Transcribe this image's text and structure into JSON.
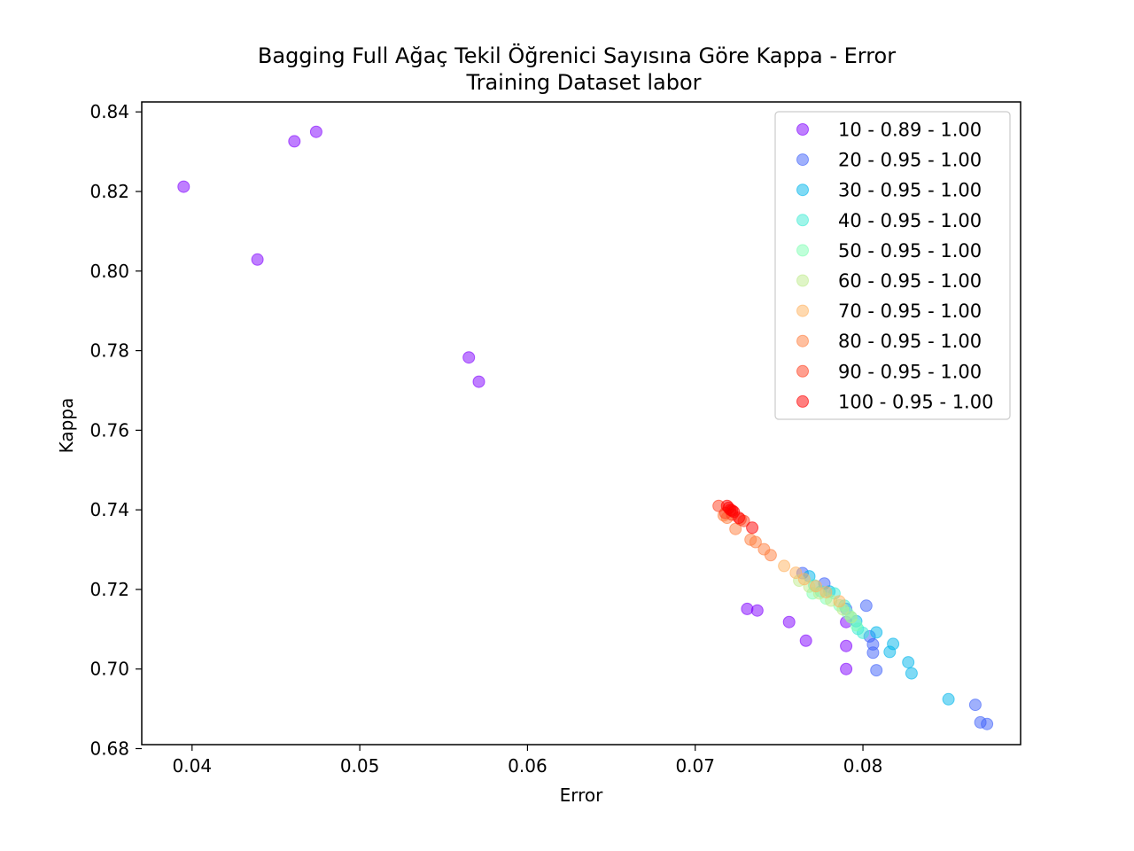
{
  "chart_data": {
    "type": "scatter",
    "title": "Bagging Full Ağaç Tekil Öğrenici Sayısına Göre Kappa - Error",
    "subtitle": "Training Dataset  labor",
    "xlabel": "Error",
    "ylabel": "Kappa",
    "xlim": [
      0.037,
      0.0894
    ],
    "ylim": [
      0.681,
      0.8425
    ],
    "xticks": [
      "0.04",
      "0.05",
      "0.06",
      "0.07",
      "0.08"
    ],
    "yticks": [
      "0.68",
      "0.70",
      "0.72",
      "0.74",
      "0.76",
      "0.78",
      "0.80",
      "0.82",
      "0.84"
    ],
    "grid": false,
    "legend_position": "top-right",
    "series": [
      {
        "name": "10 - 0.89 - 1.00",
        "color": "#8000ff",
        "points": [
          [
            0.0395,
            0.8212
          ],
          [
            0.0461,
            0.8326
          ],
          [
            0.0474,
            0.835
          ],
          [
            0.0439,
            0.8029
          ],
          [
            0.0565,
            0.7783
          ],
          [
            0.0571,
            0.7722
          ],
          [
            0.0731,
            0.7151
          ],
          [
            0.0737,
            0.7147
          ],
          [
            0.0756,
            0.7118
          ],
          [
            0.0766,
            0.7071
          ],
          [
            0.079,
            0.7058
          ],
          [
            0.079,
            0.7
          ],
          [
            0.079,
            0.7118
          ]
        ]
      },
      {
        "name": "20 - 0.95 - 1.00",
        "color": "#4062fa",
        "points": [
          [
            0.0764,
            0.7241
          ],
          [
            0.0777,
            0.7215
          ],
          [
            0.079,
            0.7151
          ],
          [
            0.0802,
            0.7159
          ],
          [
            0.0804,
            0.7082
          ],
          [
            0.0806,
            0.7062
          ],
          [
            0.0806,
            0.7041
          ],
          [
            0.0808,
            0.6997
          ],
          [
            0.0867,
            0.691
          ],
          [
            0.087,
            0.6866
          ],
          [
            0.0874,
            0.6862
          ]
        ]
      },
      {
        "name": "30 - 0.95 - 1.00",
        "color": "#00b5eb",
        "points": [
          [
            0.0768,
            0.7233
          ],
          [
            0.078,
            0.7195
          ],
          [
            0.0796,
            0.712
          ],
          [
            0.0808,
            0.7092
          ],
          [
            0.0816,
            0.7043
          ],
          [
            0.0818,
            0.7063
          ],
          [
            0.0827,
            0.7017
          ],
          [
            0.0829,
            0.6989
          ],
          [
            0.0851,
            0.6924
          ]
        ]
      },
      {
        "name": "40 - 0.95 - 1.00",
        "color": "#40ecd4",
        "points": [
          [
            0.0771,
            0.721
          ],
          [
            0.0775,
            0.7195
          ],
          [
            0.0783,
            0.719
          ],
          [
            0.0789,
            0.7159
          ],
          [
            0.0793,
            0.713
          ],
          [
            0.0797,
            0.7101
          ],
          [
            0.08,
            0.7091
          ]
        ]
      },
      {
        "name": "50 - 0.95 - 1.00",
        "color": "#80ffb4",
        "points": [
          [
            0.077,
            0.719
          ],
          [
            0.0778,
            0.7177
          ],
          [
            0.0786,
            0.716
          ],
          [
            0.0791,
            0.714
          ],
          [
            0.0796,
            0.711
          ]
        ]
      },
      {
        "name": "60 - 0.95 - 1.00",
        "color": "#c0eb8d",
        "points": [
          [
            0.0762,
            0.7222
          ],
          [
            0.0768,
            0.7207
          ],
          [
            0.0774,
            0.719
          ],
          [
            0.0781,
            0.7172
          ],
          [
            0.0788,
            0.715
          ],
          [
            0.0793,
            0.713
          ]
        ]
      },
      {
        "name": "70 - 0.95 - 1.00",
        "color": "#ffb360",
        "points": [
          [
            0.0753,
            0.7259
          ],
          [
            0.076,
            0.7242
          ],
          [
            0.0765,
            0.7226
          ],
          [
            0.0772,
            0.7208
          ],
          [
            0.0778,
            0.7193
          ],
          [
            0.0786,
            0.717
          ]
        ]
      },
      {
        "name": "80 - 0.95 - 1.00",
        "color": "#ff7f3f",
        "points": [
          [
            0.0733,
            0.7325
          ],
          [
            0.0736,
            0.7319
          ],
          [
            0.0741,
            0.7301
          ],
          [
            0.0745,
            0.7286
          ],
          [
            0.0724,
            0.7352
          ],
          [
            0.0719,
            0.738
          ],
          [
            0.0717,
            0.7386
          ]
        ]
      },
      {
        "name": "90 - 0.95 - 1.00",
        "color": "#ff4020",
        "points": [
          [
            0.0714,
            0.741
          ],
          [
            0.0718,
            0.7392
          ],
          [
            0.0722,
            0.7388
          ],
          [
            0.0727,
            0.7376
          ],
          [
            0.0729,
            0.7372
          ]
        ]
      },
      {
        "name": "100 - 0.95 - 1.00",
        "color": "#ff0000",
        "points": [
          [
            0.0719,
            0.741
          ],
          [
            0.072,
            0.7405
          ],
          [
            0.0721,
            0.74
          ],
          [
            0.0722,
            0.7398
          ],
          [
            0.0723,
            0.7395
          ],
          [
            0.0726,
            0.738
          ],
          [
            0.0734,
            0.7355
          ]
        ]
      }
    ]
  }
}
